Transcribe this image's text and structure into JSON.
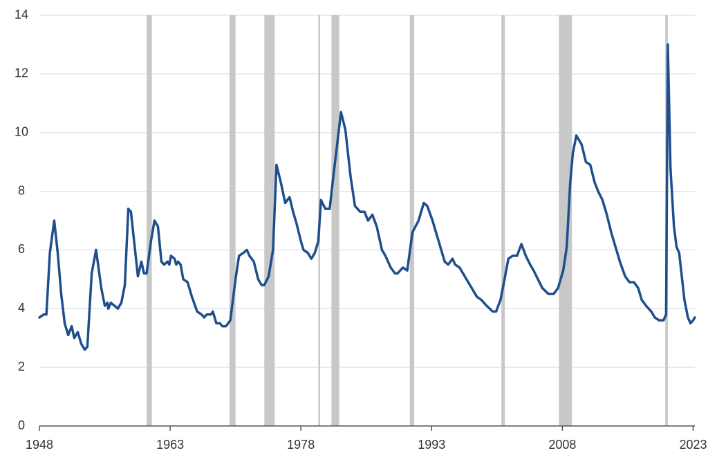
{
  "chart_data": {
    "type": "line",
    "x": [
      1948.0,
      1948.5,
      1948.8,
      1949.2,
      1949.7,
      1950.1,
      1950.5,
      1950.9,
      1951.3,
      1951.7,
      1952.0,
      1952.4,
      1952.8,
      1953.2,
      1953.5,
      1954.0,
      1954.5,
      1955.1,
      1955.5,
      1955.8,
      1955.9,
      1956.2,
      1956.6,
      1957.0,
      1957.4,
      1957.8,
      1958.2,
      1958.5,
      1959.3,
      1959.7,
      1960.0,
      1960.3,
      1960.8,
      1961.2,
      1961.6,
      1962.0,
      1962.3,
      1962.7,
      1962.9,
      1963.1,
      1963.5,
      1963.7,
      1963.9,
      1964.2,
      1964.5,
      1965.0,
      1965.5,
      1966.1,
      1966.6,
      1966.9,
      1967.2,
      1967.7,
      1967.9,
      1968.3,
      1968.7,
      1969.0,
      1969.4,
      1969.9,
      1970.5,
      1970.9,
      1971.4,
      1971.8,
      1972.1,
      1972.6,
      1973.1,
      1973.5,
      1973.8,
      1974.3,
      1974.8,
      1975.2,
      1975.7,
      1976.2,
      1976.7,
      1977.1,
      1977.5,
      1978.0,
      1978.3,
      1978.8,
      1979.2,
      1979.6,
      1980.0,
      1980.3,
      1980.8,
      1981.3,
      1981.8,
      1982.6,
      1983.1,
      1983.7,
      1984.2,
      1984.8,
      1985.3,
      1985.7,
      1986.2,
      1986.7,
      1987.3,
      1987.7,
      1988.3,
      1988.8,
      1989.1,
      1989.7,
      1990.2,
      1990.8,
      1991.5,
      1992.1,
      1992.5,
      1993.1,
      1993.5,
      1994.0,
      1994.5,
      1994.9,
      1995.4,
      1995.7,
      1996.2,
      1996.6,
      1997.0,
      1997.4,
      1997.8,
      1998.2,
      1998.7,
      1999.3,
      2000.0,
      2000.4,
      2000.9,
      2001.3,
      2001.8,
      2002.3,
      2002.8,
      2003.3,
      2003.8,
      2004.3,
      2004.7,
      2005.2,
      2005.7,
      2006.4,
      2007.0,
      2007.5,
      2008.1,
      2008.5,
      2008.9,
      2009.2,
      2009.6,
      2010.2,
      2010.7,
      2011.2,
      2011.7,
      2012.1,
      2012.6,
      2013.1,
      2013.6,
      2014.0,
      2014.6,
      2015.2,
      2015.7,
      2016.2,
      2016.7,
      2017.1,
      2017.6,
      2018.2,
      2018.6,
      2019.1,
      2019.6,
      2019.9,
      2020.1,
      2020.4,
      2020.8,
      2021.1,
      2021.4,
      2022.0,
      2022.4,
      2022.7,
      2023.0,
      2023.2
    ],
    "series": [
      {
        "color": "#1f4e8c",
        "values": [
          3.7,
          3.8,
          3.8,
          5.9,
          7.0,
          5.9,
          4.5,
          3.5,
          3.1,
          3.4,
          3.0,
          3.2,
          2.8,
          2.6,
          2.7,
          5.2,
          6.0,
          4.7,
          4.1,
          4.2,
          4.0,
          4.2,
          4.1,
          4.0,
          4.2,
          4.8,
          7.4,
          7.3,
          5.1,
          5.6,
          5.2,
          5.2,
          6.3,
          7.0,
          6.8,
          5.6,
          5.5,
          5.6,
          5.5,
          5.8,
          5.7,
          5.5,
          5.6,
          5.5,
          5.0,
          4.9,
          4.4,
          3.9,
          3.8,
          3.7,
          3.8,
          3.8,
          3.9,
          3.5,
          3.5,
          3.4,
          3.4,
          3.6,
          5.0,
          5.8,
          5.9,
          6.0,
          5.8,
          5.6,
          5.0,
          4.8,
          4.8,
          5.1,
          6.0,
          8.9,
          8.3,
          7.6,
          7.8,
          7.3,
          6.9,
          6.3,
          6.0,
          5.9,
          5.7,
          5.9,
          6.3,
          7.7,
          7.4,
          7.4,
          8.7,
          10.7,
          10.1,
          8.5,
          7.5,
          7.3,
          7.3,
          7.0,
          7.2,
          6.8,
          6.0,
          5.8,
          5.4,
          5.2,
          5.2,
          5.4,
          5.3,
          6.6,
          7.0,
          7.6,
          7.5,
          7.0,
          6.6,
          6.1,
          5.6,
          5.5,
          5.7,
          5.5,
          5.4,
          5.2,
          5.0,
          4.8,
          4.6,
          4.4,
          4.3,
          4.1,
          3.9,
          3.9,
          4.3,
          4.9,
          5.7,
          5.8,
          5.8,
          6.2,
          5.8,
          5.5,
          5.3,
          5.0,
          4.7,
          4.5,
          4.5,
          4.7,
          5.3,
          6.1,
          8.3,
          9.3,
          9.9,
          9.6,
          9.0,
          8.9,
          8.3,
          8.0,
          7.7,
          7.2,
          6.6,
          6.2,
          5.6,
          5.1,
          4.9,
          4.9,
          4.7,
          4.3,
          4.1,
          3.9,
          3.7,
          3.6,
          3.6,
          3.8,
          13.0,
          8.8,
          6.8,
          6.1,
          5.9,
          4.3,
          3.7,
          3.5,
          3.6,
          3.7
        ]
      }
    ],
    "shaded_ranges": [
      [
        1960.3,
        1960.9
      ],
      [
        1969.8,
        1970.5
      ],
      [
        1973.8,
        1975.0
      ],
      [
        1980.0,
        1980.2
      ],
      [
        1981.5,
        1982.4
      ],
      [
        1990.5,
        1991.0
      ],
      [
        2001.0,
        2001.4
      ],
      [
        2007.6,
        2009.1
      ],
      [
        2019.8,
        2020.1
      ]
    ],
    "shade_color": "#c8c8c8",
    "xlim": [
      1948,
      2023.2
    ],
    "xticks": [
      1948,
      1963,
      1978,
      1993,
      2008,
      2023
    ],
    "ylim": [
      0,
      14
    ],
    "yticks": [
      0,
      2,
      4,
      6,
      8,
      10,
      12,
      14
    ],
    "grid": true
  }
}
